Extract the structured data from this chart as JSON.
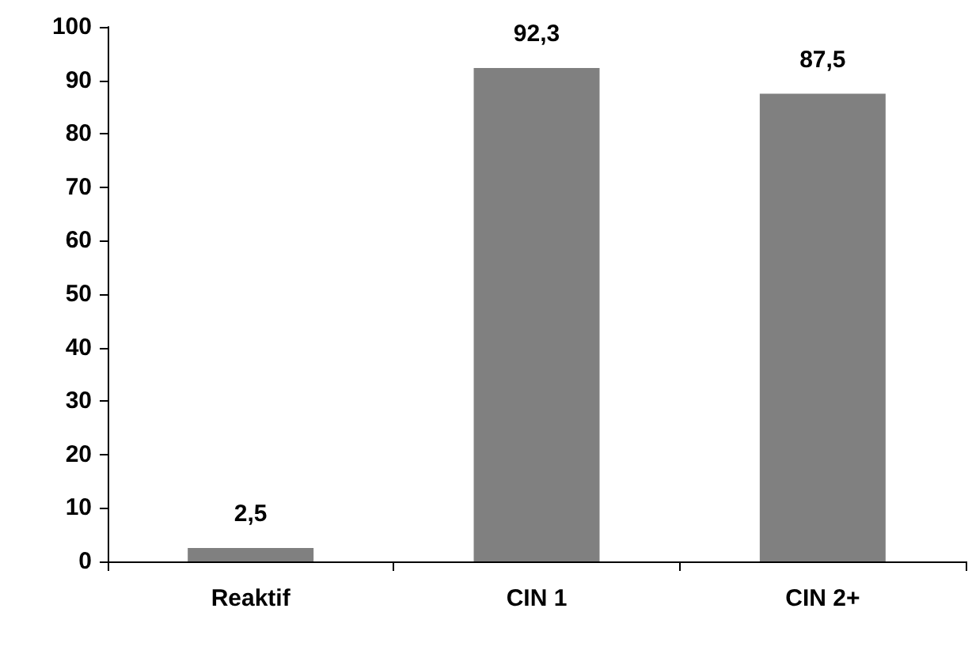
{
  "chart_data": {
    "type": "bar",
    "categories": [
      "Reaktif",
      "CIN 1",
      "CIN 2+"
    ],
    "values": [
      2.5,
      92.3,
      87.5
    ],
    "color": "#808080",
    "value_labels": [
      "2,5",
      "92,3",
      "87,5"
    ],
    "ylim": [
      0,
      100
    ],
    "yticks": [
      0,
      10,
      20,
      30,
      40,
      50,
      60,
      70,
      80,
      90,
      100
    ],
    "grid": false
  }
}
